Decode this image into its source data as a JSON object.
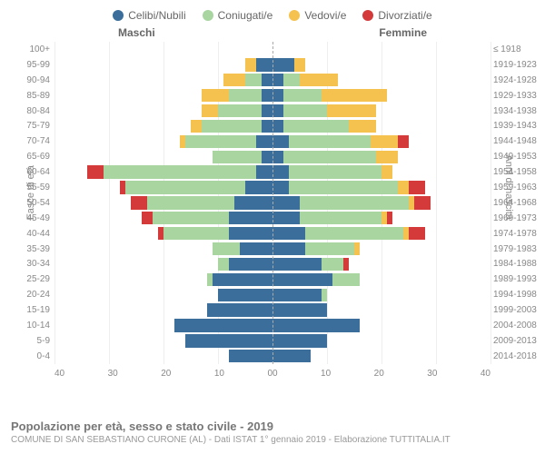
{
  "chart": {
    "type": "population_pyramid",
    "legend": [
      {
        "label": "Celibi/Nubili",
        "color": "#3b6e9b"
      },
      {
        "label": "Coniugati/e",
        "color": "#a8d5a0"
      },
      {
        "label": "Vedovi/e",
        "color": "#f5c24f"
      },
      {
        "label": "Divorziati/e",
        "color": "#d43a3a"
      }
    ],
    "header_left": "Maschi",
    "header_right": "Femmine",
    "y_left_label": "Fasce di età",
    "y_right_label": "Anni di nascita",
    "x_max": 40,
    "x_ticks_left": [
      "40",
      "30",
      "20",
      "10",
      "0"
    ],
    "x_ticks_right": [
      "0",
      "10",
      "20",
      "30",
      "40"
    ],
    "colors": {
      "celibi": "#3b6e9b",
      "coniugati": "#a8d5a0",
      "vedovi": "#f5c24f",
      "divorziati": "#d43a3a",
      "grid": "#eeeeee",
      "center": "#aaaaaa",
      "text": "#888888"
    },
    "rows": [
      {
        "age": "100+",
        "birth": "≤ 1918",
        "m": {
          "cel": 0,
          "con": 0,
          "ved": 0,
          "div": 0
        },
        "f": {
          "cel": 0,
          "con": 0,
          "ved": 0,
          "div": 0
        }
      },
      {
        "age": "95-99",
        "birth": "1919-1923",
        "m": {
          "cel": 3,
          "con": 0,
          "ved": 2,
          "div": 0
        },
        "f": {
          "cel": 4,
          "con": 0,
          "ved": 2,
          "div": 0
        }
      },
      {
        "age": "90-94",
        "birth": "1924-1928",
        "m": {
          "cel": 2,
          "con": 3,
          "ved": 4,
          "div": 0
        },
        "f": {
          "cel": 2,
          "con": 3,
          "ved": 7,
          "div": 0
        }
      },
      {
        "age": "85-89",
        "birth": "1929-1933",
        "m": {
          "cel": 2,
          "con": 6,
          "ved": 5,
          "div": 0
        },
        "f": {
          "cel": 2,
          "con": 7,
          "ved": 12,
          "div": 0
        }
      },
      {
        "age": "80-84",
        "birth": "1934-1938",
        "m": {
          "cel": 2,
          "con": 8,
          "ved": 3,
          "div": 0
        },
        "f": {
          "cel": 2,
          "con": 8,
          "ved": 9,
          "div": 0
        }
      },
      {
        "age": "75-79",
        "birth": "1939-1943",
        "m": {
          "cel": 2,
          "con": 11,
          "ved": 2,
          "div": 0
        },
        "f": {
          "cel": 2,
          "con": 12,
          "ved": 5,
          "div": 0
        }
      },
      {
        "age": "70-74",
        "birth": "1944-1948",
        "m": {
          "cel": 3,
          "con": 13,
          "ved": 1,
          "div": 0
        },
        "f": {
          "cel": 3,
          "con": 15,
          "ved": 5,
          "div": 2
        }
      },
      {
        "age": "65-69",
        "birth": "1949-1953",
        "m": {
          "cel": 2,
          "con": 9,
          "ved": 0,
          "div": 0
        },
        "f": {
          "cel": 2,
          "con": 17,
          "ved": 4,
          "div": 0
        }
      },
      {
        "age": "60-64",
        "birth": "1954-1958",
        "m": {
          "cel": 3,
          "con": 28,
          "ved": 0,
          "div": 3
        },
        "f": {
          "cel": 3,
          "con": 17,
          "ved": 2,
          "div": 0
        }
      },
      {
        "age": "55-59",
        "birth": "1959-1963",
        "m": {
          "cel": 5,
          "con": 22,
          "ved": 0,
          "div": 1
        },
        "f": {
          "cel": 3,
          "con": 20,
          "ved": 2,
          "div": 3
        }
      },
      {
        "age": "50-54",
        "birth": "1964-1968",
        "m": {
          "cel": 7,
          "con": 16,
          "ved": 0,
          "div": 3
        },
        "f": {
          "cel": 5,
          "con": 20,
          "ved": 1,
          "div": 3
        }
      },
      {
        "age": "45-49",
        "birth": "1969-1973",
        "m": {
          "cel": 8,
          "con": 14,
          "ved": 0,
          "div": 2
        },
        "f": {
          "cel": 5,
          "con": 15,
          "ved": 1,
          "div": 1
        }
      },
      {
        "age": "40-44",
        "birth": "1974-1978",
        "m": {
          "cel": 8,
          "con": 12,
          "ved": 0,
          "div": 1
        },
        "f": {
          "cel": 6,
          "con": 18,
          "ved": 1,
          "div": 3
        }
      },
      {
        "age": "35-39",
        "birth": "1979-1983",
        "m": {
          "cel": 6,
          "con": 5,
          "ved": 0,
          "div": 0
        },
        "f": {
          "cel": 6,
          "con": 9,
          "ved": 1,
          "div": 0
        }
      },
      {
        "age": "30-34",
        "birth": "1984-1988",
        "m": {
          "cel": 8,
          "con": 2,
          "ved": 0,
          "div": 0
        },
        "f": {
          "cel": 9,
          "con": 4,
          "ved": 0,
          "div": 1
        }
      },
      {
        "age": "25-29",
        "birth": "1989-1993",
        "m": {
          "cel": 11,
          "con": 1,
          "ved": 0,
          "div": 0
        },
        "f": {
          "cel": 11,
          "con": 5,
          "ved": 0,
          "div": 0
        }
      },
      {
        "age": "20-24",
        "birth": "1994-1998",
        "m": {
          "cel": 10,
          "con": 0,
          "ved": 0,
          "div": 0
        },
        "f": {
          "cel": 9,
          "con": 1,
          "ved": 0,
          "div": 0
        }
      },
      {
        "age": "15-19",
        "birth": "1999-2003",
        "m": {
          "cel": 12,
          "con": 0,
          "ved": 0,
          "div": 0
        },
        "f": {
          "cel": 10,
          "con": 0,
          "ved": 0,
          "div": 0
        }
      },
      {
        "age": "10-14",
        "birth": "2004-2008",
        "m": {
          "cel": 18,
          "con": 0,
          "ved": 0,
          "div": 0
        },
        "f": {
          "cel": 16,
          "con": 0,
          "ved": 0,
          "div": 0
        }
      },
      {
        "age": "5-9",
        "birth": "2009-2013",
        "m": {
          "cel": 16,
          "con": 0,
          "ved": 0,
          "div": 0
        },
        "f": {
          "cel": 10,
          "con": 0,
          "ved": 0,
          "div": 0
        }
      },
      {
        "age": "0-4",
        "birth": "2014-2018",
        "m": {
          "cel": 8,
          "con": 0,
          "ved": 0,
          "div": 0
        },
        "f": {
          "cel": 7,
          "con": 0,
          "ved": 0,
          "div": 0
        }
      }
    ],
    "footer_title": "Popolazione per età, sesso e stato civile - 2019",
    "footer_sub": "COMUNE DI SAN SEBASTIANO CURONE (AL) - Dati ISTAT 1° gennaio 2019 - Elaborazione TUTTITALIA.IT"
  }
}
